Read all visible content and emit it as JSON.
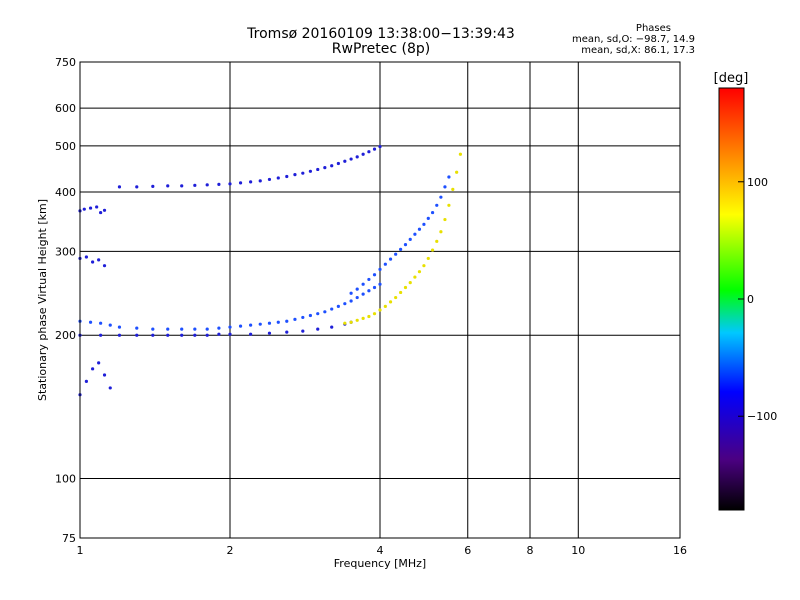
{
  "header": {
    "title": "Tromsø 20160109 13:38:00−13:39:43",
    "subtitle": "RwPretec (8p)",
    "phases_title": "Phases",
    "phases_o": "mean, sd,O: −98.7, 14.9",
    "phases_x": "mean, sd,X:  86.1, 17.3"
  },
  "colorbar": {
    "unit": "[deg]",
    "ticks": [
      "100",
      "0",
      "−100"
    ],
    "tick_values": [
      100,
      0,
      -100
    ],
    "range": [
      -180,
      180
    ]
  },
  "colors": {
    "low_end": "#000000",
    "high_end": "#ff0000"
  },
  "chart_data": {
    "type": "scatter",
    "title": "Tromsø 20160109 13:38:00−13:39:43",
    "subtitle": "RwPretec (8p)",
    "xlabel": "Frequency [MHz]",
    "ylabel": "Stationary phase Virtual Height [km]",
    "x_scale": "log",
    "y_scale": "log",
    "xlim": [
      1,
      16
    ],
    "ylim": [
      75,
      750
    ],
    "x_ticks": [
      "1",
      "2",
      "4",
      "6",
      "8",
      "10",
      "16"
    ],
    "x_tick_values": [
      1,
      2,
      4,
      6,
      8,
      10,
      16
    ],
    "y_ticks": [
      "75",
      "100",
      "200",
      "300",
      "400",
      "500",
      "600",
      "750"
    ],
    "y_tick_values": [
      75,
      100,
      200,
      300,
      400,
      500,
      600,
      750
    ],
    "grid": true,
    "color_variable": "phase [deg]",
    "series": [
      {
        "x": [
          1.0,
          1.05,
          1.1,
          1.15,
          1.2,
          1.3,
          1.4,
          1.5,
          1.6,
          1.7,
          1.8,
          1.9,
          2.0,
          2.1,
          2.2,
          2.3,
          2.4,
          2.5,
          2.6,
          2.7,
          2.8,
          2.9,
          3.0,
          3.1,
          3.2,
          3.3,
          3.4,
          3.5,
          3.6,
          3.7,
          3.8,
          3.9,
          4.0
        ],
        "y": [
          214,
          213,
          212,
          210,
          208,
          207,
          206,
          206,
          206,
          206,
          206,
          207,
          208,
          209,
          210,
          211,
          212,
          213,
          214,
          216,
          218,
          220,
          222,
          224,
          227,
          230,
          233,
          236,
          240,
          244,
          248,
          252,
          256
        ],
        "phase": -100
      },
      {
        "x": [
          1.0,
          1.1,
          1.2,
          1.3,
          1.4,
          1.5,
          1.6,
          1.7,
          1.8,
          1.9,
          2.0,
          2.2,
          2.4,
          2.6,
          2.8,
          3.0,
          3.2,
          3.4,
          3.5
        ],
        "y": [
          200,
          200,
          200,
          200,
          200,
          200,
          200,
          200,
          200,
          201,
          201,
          201,
          202,
          203,
          204,
          206,
          208,
          211,
          213
        ],
        "phase": -110
      },
      {
        "x": [
          3.4,
          3.5,
          3.6,
          3.7,
          3.8,
          3.9,
          4.0,
          4.1,
          4.2,
          4.3,
          4.4,
          4.5,
          4.6,
          4.7,
          4.8,
          4.9,
          5.0,
          5.1,
          5.2,
          5.3,
          5.4,
          5.5,
          5.6,
          5.7,
          5.8
        ],
        "y": [
          212,
          213,
          215,
          217,
          219,
          222,
          226,
          230,
          235,
          240,
          246,
          252,
          258,
          265,
          272,
          280,
          290,
          302,
          315,
          330,
          350,
          375,
          405,
          440,
          480
        ],
        "phase": 100
      },
      {
        "x": [
          3.5,
          3.6,
          3.7,
          3.8,
          3.9,
          4.0,
          4.1,
          4.2,
          4.3,
          4.4,
          4.5,
          4.6,
          4.7,
          4.8,
          4.9,
          5.0,
          5.1,
          5.2,
          5.3,
          5.4,
          5.5
        ],
        "y": [
          245,
          250,
          256,
          262,
          268,
          275,
          282,
          289,
          296,
          303,
          310,
          318,
          326,
          334,
          342,
          352,
          362,
          375,
          390,
          410,
          430
        ],
        "phase": -100
      },
      {
        "x": [
          1.2,
          1.3,
          1.4,
          1.5,
          1.6,
          1.7,
          1.8,
          1.9,
          2.0,
          2.1,
          2.2,
          2.3,
          2.4,
          2.5,
          2.6,
          2.7,
          2.8,
          2.9,
          3.0,
          3.1,
          3.2,
          3.3,
          3.4,
          3.5,
          3.6,
          3.7,
          3.8,
          3.9,
          4.0
        ],
        "y": [
          410,
          410,
          411,
          412,
          412,
          413,
          414,
          415,
          416,
          418,
          420,
          422,
          425,
          428,
          431,
          435,
          438,
          442,
          446,
          450,
          454,
          459,
          464,
          469,
          474,
          480,
          486,
          492,
          498
        ],
        "phase": -110
      },
      {
        "x": [
          1.0,
          1.02,
          1.05,
          1.08,
          1.1,
          1.12
        ],
        "y": [
          365,
          368,
          370,
          372,
          362,
          366
        ],
        "phase": -110
      },
      {
        "x": [
          1.0,
          1.03,
          1.06,
          1.09,
          1.12
        ],
        "y": [
          290,
          292,
          285,
          288,
          280
        ],
        "phase": -110
      },
      {
        "x": [
          1.0,
          1.03,
          1.06,
          1.09,
          1.12,
          1.15
        ],
        "y": [
          150,
          160,
          170,
          175,
          165,
          155
        ],
        "phase": -110
      }
    ]
  }
}
